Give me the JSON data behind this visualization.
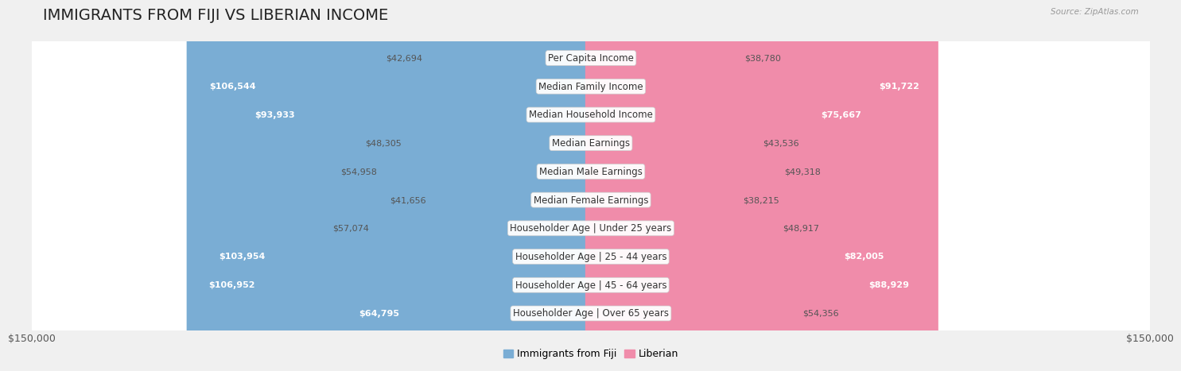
{
  "title": "IMMIGRANTS FROM FIJI VS LIBERIAN INCOME",
  "source": "Source: ZipAtlas.com",
  "categories": [
    "Per Capita Income",
    "Median Family Income",
    "Median Household Income",
    "Median Earnings",
    "Median Male Earnings",
    "Median Female Earnings",
    "Householder Age | Under 25 years",
    "Householder Age | 25 - 44 years",
    "Householder Age | 45 - 64 years",
    "Householder Age | Over 65 years"
  ],
  "fiji_values": [
    42694,
    106544,
    93933,
    48305,
    54958,
    41656,
    57074,
    103954,
    106952,
    64795
  ],
  "liberian_values": [
    38780,
    91722,
    75667,
    43536,
    49318,
    38215,
    48917,
    82005,
    88929,
    54356
  ],
  "fiji_color": "#7aadd4",
  "liberian_color": "#f08caa",
  "fiji_color_dark": "#5b96c7",
  "liberian_color_dark": "#e8607e",
  "fiji_label": "Immigrants from Fiji",
  "liberian_label": "Liberian",
  "axis_max": 150000,
  "background_color": "#f0f0f0",
  "row_bg_color": "#ffffff",
  "row_bg_alt": "#f7f7f7",
  "title_fontsize": 14,
  "label_fontsize": 8.5,
  "value_fontsize": 8,
  "legend_fontsize": 9,
  "fiji_large_threshold": 60000,
  "liberian_large_threshold": 60000
}
